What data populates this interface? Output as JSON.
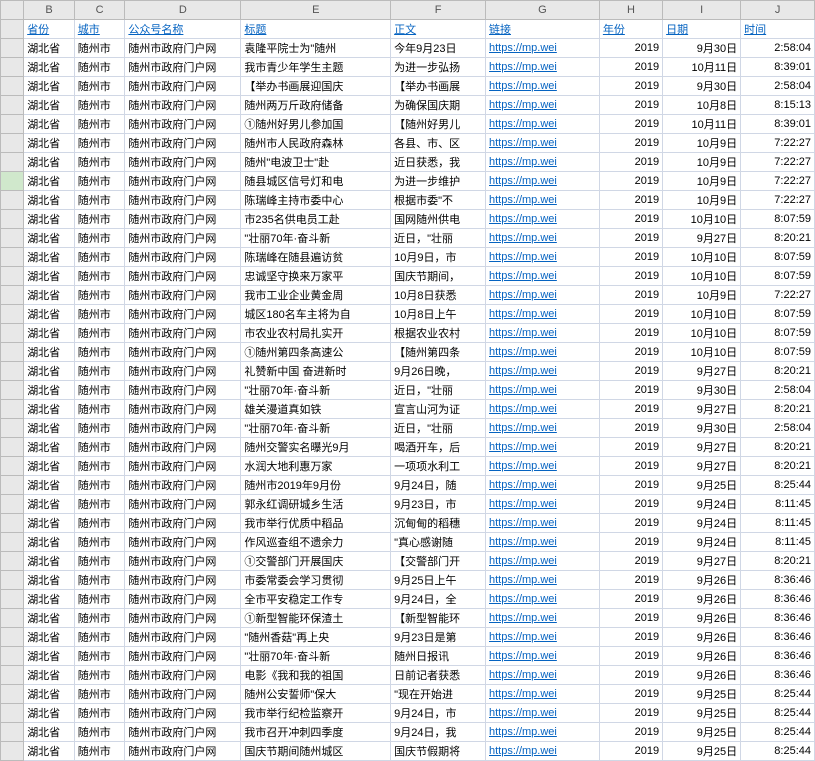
{
  "columns": [
    "",
    "B",
    "C",
    "D",
    "E",
    "F",
    "G",
    "H",
    "I",
    "J"
  ],
  "headers": [
    "省份",
    "城市",
    "公众号名称",
    "标题",
    "正文",
    "链接",
    "年份",
    "日期",
    "时间"
  ],
  "col_classes": [
    "row-header",
    "c-B",
    "c-C",
    "c-D",
    "c-E",
    "c-F",
    "c-G",
    "c-H",
    "c-I",
    "c-J"
  ],
  "header_color": "#0563c1",
  "link_color": "#0563c1",
  "grid_color": "#d0d7e5",
  "selected_row": 8,
  "rows": [
    {
      "b": "湖北省",
      "c": "随州市",
      "d": "随州市政府门户网",
      "e": "袁隆平院士为\"随州",
      "f": "今年9月23日",
      "g": "https://mp.wei",
      "h": "2019",
      "i": "9月30日",
      "j": "2:58:04"
    },
    {
      "b": "湖北省",
      "c": "随州市",
      "d": "随州市政府门户网",
      "e": "我市青少年学生主题",
      "f": "为进一步弘扬",
      "g": "https://mp.wei",
      "h": "2019",
      "i": "10月11日",
      "j": "8:39:01"
    },
    {
      "b": "湖北省",
      "c": "随州市",
      "d": "随州市政府门户网",
      "e": "【举办书画展迎国庆",
      "f": "【举办书画展",
      "g": "https://mp.wei",
      "h": "2019",
      "i": "9月30日",
      "j": "2:58:04"
    },
    {
      "b": "湖北省",
      "c": "随州市",
      "d": "随州市政府门户网",
      "e": "随州两万斤政府储备",
      "f": "为确保国庆期",
      "g": "https://mp.wei",
      "h": "2019",
      "i": "10月8日",
      "j": "8:15:13"
    },
    {
      "b": "湖北省",
      "c": "随州市",
      "d": "随州市政府门户网",
      "e": "①随州好男儿参加国",
      "f": "【随州好男儿",
      "g": "https://mp.wei",
      "h": "2019",
      "i": "10月11日",
      "j": "8:39:01"
    },
    {
      "b": "湖北省",
      "c": "随州市",
      "d": "随州市政府门户网",
      "e": "随州市人民政府森林",
      "f": "各县、市、区",
      "g": "https://mp.wei",
      "h": "2019",
      "i": "10月9日",
      "j": "7:22:27"
    },
    {
      "b": "湖北省",
      "c": "随州市",
      "d": "随州市政府门户网",
      "e": "随州\"电波卫士\"赴",
      "f": "近日获悉，我",
      "g": "https://mp.wei",
      "h": "2019",
      "i": "10月9日",
      "j": "7:22:27"
    },
    {
      "b": "湖北省",
      "c": "随州市",
      "d": "随州市政府门户网",
      "e": "随县城区信号灯和电",
      "f": "为进一步维护",
      "g": "https://mp.wei",
      "h": "2019",
      "i": "10月9日",
      "j": "7:22:27"
    },
    {
      "b": "湖北省",
      "c": "随州市",
      "d": "随州市政府门户网",
      "e": "陈瑞峰主持市委中心",
      "f": "根据市委\"不",
      "g": "https://mp.wei",
      "h": "2019",
      "i": "10月9日",
      "j": "7:22:27"
    },
    {
      "b": "湖北省",
      "c": "随州市",
      "d": "随州市政府门户网",
      "e": "市235名供电员工赴",
      "f": "国网随州供电",
      "g": "https://mp.wei",
      "h": "2019",
      "i": "10月10日",
      "j": "8:07:59"
    },
    {
      "b": "湖北省",
      "c": "随州市",
      "d": "随州市政府门户网",
      "e": "\"壮丽70年·奋斗新",
      "f": "近日，\"壮丽",
      "g": "https://mp.wei",
      "h": "2019",
      "i": "9月27日",
      "j": "8:20:21"
    },
    {
      "b": "湖北省",
      "c": "随州市",
      "d": "随州市政府门户网",
      "e": "陈瑞峰在随县遍访贫",
      "f": "10月9日，市",
      "g": "https://mp.wei",
      "h": "2019",
      "i": "10月10日",
      "j": "8:07:59"
    },
    {
      "b": "湖北省",
      "c": "随州市",
      "d": "随州市政府门户网",
      "e": "忠诚坚守换来万家平",
      "f": "国庆节期间，",
      "g": "https://mp.wei",
      "h": "2019",
      "i": "10月10日",
      "j": "8:07:59"
    },
    {
      "b": "湖北省",
      "c": "随州市",
      "d": "随州市政府门户网",
      "e": "我市工业企业黄金周",
      "f": "10月8日获悉",
      "g": "https://mp.wei",
      "h": "2019",
      "i": "10月9日",
      "j": "7:22:27"
    },
    {
      "b": "湖北省",
      "c": "随州市",
      "d": "随州市政府门户网",
      "e": "城区180名车主将为自",
      "f": "10月8日上午",
      "g": "https://mp.wei",
      "h": "2019",
      "i": "10月10日",
      "j": "8:07:59"
    },
    {
      "b": "湖北省",
      "c": "随州市",
      "d": "随州市政府门户网",
      "e": "市农业农村局扎实开",
      "f": "根据农业农村",
      "g": "https://mp.wei",
      "h": "2019",
      "i": "10月10日",
      "j": "8:07:59"
    },
    {
      "b": "湖北省",
      "c": "随州市",
      "d": "随州市政府门户网",
      "e": "①随州第四条高速公",
      "f": "【随州第四条",
      "g": "https://mp.wei",
      "h": "2019",
      "i": "10月10日",
      "j": "8:07:59"
    },
    {
      "b": "湖北省",
      "c": "随州市",
      "d": "随州市政府门户网",
      "e": "礼赞新中国 奋进新时",
      "f": "9月26日晚，",
      "g": "https://mp.wei",
      "h": "2019",
      "i": "9月27日",
      "j": "8:20:21"
    },
    {
      "b": "湖北省",
      "c": "随州市",
      "d": "随州市政府门户网",
      "e": "\"壮丽70年·奋斗新",
      "f": "近日，\"壮丽",
      "g": "https://mp.wei",
      "h": "2019",
      "i": "9月30日",
      "j": "2:58:04"
    },
    {
      "b": "湖北省",
      "c": "随州市",
      "d": "随州市政府门户网",
      "e": "雄关漫道真如铁",
      "f": "宣言山河为证",
      "g": "https://mp.wei",
      "h": "2019",
      "i": "9月27日",
      "j": "8:20:21"
    },
    {
      "b": "湖北省",
      "c": "随州市",
      "d": "随州市政府门户网",
      "e": "\"壮丽70年·奋斗新",
      "f": "近日，\"壮丽",
      "g": "https://mp.wei",
      "h": "2019",
      "i": "9月30日",
      "j": "2:58:04"
    },
    {
      "b": "湖北省",
      "c": "随州市",
      "d": "随州市政府门户网",
      "e": "随州交警实名曝光9月",
      "f": "喝酒开车，后",
      "g": "https://mp.wei",
      "h": "2019",
      "i": "9月27日",
      "j": "8:20:21"
    },
    {
      "b": "湖北省",
      "c": "随州市",
      "d": "随州市政府门户网",
      "e": "水润大地利惠万家",
      "f": "一项项水利工",
      "g": "https://mp.wei",
      "h": "2019",
      "i": "9月27日",
      "j": "8:20:21"
    },
    {
      "b": "湖北省",
      "c": "随州市",
      "d": "随州市政府门户网",
      "e": "随州市2019年9月份",
      "f": "9月24日，随",
      "g": "https://mp.wei",
      "h": "2019",
      "i": "9月25日",
      "j": "8:25:44"
    },
    {
      "b": "湖北省",
      "c": "随州市",
      "d": "随州市政府门户网",
      "e": "郭永红调研城乡生活",
      "f": "9月23日，市",
      "g": "https://mp.wei",
      "h": "2019",
      "i": "9月24日",
      "j": "8:11:45"
    },
    {
      "b": "湖北省",
      "c": "随州市",
      "d": "随州市政府门户网",
      "e": "我市举行优质中稻品",
      "f": "沉甸甸的稻穗",
      "g": "https://mp.wei",
      "h": "2019",
      "i": "9月24日",
      "j": "8:11:45"
    },
    {
      "b": "湖北省",
      "c": "随州市",
      "d": "随州市政府门户网",
      "e": "作风巡查组不遗余力",
      "f": "\"真心感谢随",
      "g": "https://mp.wei",
      "h": "2019",
      "i": "9月24日",
      "j": "8:11:45"
    },
    {
      "b": "湖北省",
      "c": "随州市",
      "d": "随州市政府门户网",
      "e": "①交警部门开展国庆",
      "f": "【交警部门开",
      "g": "https://mp.wei",
      "h": "2019",
      "i": "9月27日",
      "j": "8:20:21"
    },
    {
      "b": "湖北省",
      "c": "随州市",
      "d": "随州市政府门户网",
      "e": "市委常委会学习贯彻",
      "f": "9月25日上午",
      "g": "https://mp.wei",
      "h": "2019",
      "i": "9月26日",
      "j": "8:36:46"
    },
    {
      "b": "湖北省",
      "c": "随州市",
      "d": "随州市政府门户网",
      "e": "全市平安稳定工作专",
      "f": "9月24日，全",
      "g": "https://mp.wei",
      "h": "2019",
      "i": "9月26日",
      "j": "8:36:46"
    },
    {
      "b": "湖北省",
      "c": "随州市",
      "d": "随州市政府门户网",
      "e": "①新型智能环保渣土",
      "f": "【新型智能环",
      "g": "https://mp.wei",
      "h": "2019",
      "i": "9月26日",
      "j": "8:36:46"
    },
    {
      "b": "湖北省",
      "c": "随州市",
      "d": "随州市政府门户网",
      "e": "\"随州香菇\"再上央",
      "f": "9月23日是第",
      "g": "https://mp.wei",
      "h": "2019",
      "i": "9月26日",
      "j": "8:36:46"
    },
    {
      "b": "湖北省",
      "c": "随州市",
      "d": "随州市政府门户网",
      "e": "\"壮丽70年·奋斗新",
      "f": "随州日报讯",
      "g": "https://mp.wei",
      "h": "2019",
      "i": "9月26日",
      "j": "8:36:46"
    },
    {
      "b": "湖北省",
      "c": "随州市",
      "d": "随州市政府门户网",
      "e": "电影《我和我的祖国",
      "f": "日前记者获悉",
      "g": "https://mp.wei",
      "h": "2019",
      "i": "9月26日",
      "j": "8:36:46"
    },
    {
      "b": "湖北省",
      "c": "随州市",
      "d": "随州市政府门户网",
      "e": "随州公安誓师\"保大",
      "f": "\"现在开始进",
      "g": "https://mp.wei",
      "h": "2019",
      "i": "9月25日",
      "j": "8:25:44"
    },
    {
      "b": "湖北省",
      "c": "随州市",
      "d": "随州市政府门户网",
      "e": "我市举行纪检监察开",
      "f": "9月24日，市",
      "g": "https://mp.wei",
      "h": "2019",
      "i": "9月25日",
      "j": "8:25:44"
    },
    {
      "b": "湖北省",
      "c": "随州市",
      "d": "随州市政府门户网",
      "e": "我市召开冲刺四季度",
      "f": "9月24日，我",
      "g": "https://mp.wei",
      "h": "2019",
      "i": "9月25日",
      "j": "8:25:44"
    },
    {
      "b": "湖北省",
      "c": "随州市",
      "d": "随州市政府门户网",
      "e": "国庆节期间随州城区",
      "f": "国庆节假期将",
      "g": "https://mp.wei",
      "h": "2019",
      "i": "9月25日",
      "j": "8:25:44"
    }
  ]
}
